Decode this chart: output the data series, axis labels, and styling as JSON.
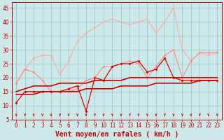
{
  "x": [
    0,
    1,
    2,
    3,
    4,
    5,
    6,
    7,
    8,
    9,
    10,
    11,
    12,
    13,
    14,
    15,
    16,
    17,
    18,
    19,
    20,
    21,
    22,
    23
  ],
  "line_upper_light": [
    18,
    23,
    27,
    28,
    28,
    21,
    26,
    33,
    36,
    38,
    40,
    41,
    40,
    39,
    40,
    41,
    36,
    40,
    45,
    30,
    26,
    29,
    28,
    29
  ],
  "line_mid_light": [
    18,
    23,
    22,
    19,
    15,
    15,
    15,
    16,
    19,
    20,
    24,
    24,
    25,
    26,
    25,
    20,
    24,
    28,
    30,
    20,
    26,
    29,
    29,
    29
  ],
  "line_red_jagged": [
    11,
    15,
    15,
    15,
    15,
    15,
    16,
    17,
    8,
    20,
    19,
    24,
    25,
    25,
    26,
    22,
    23,
    27,
    20,
    19,
    19,
    19,
    19,
    19
  ],
  "line_trend_upper": [
    15,
    16,
    17,
    17,
    17,
    18,
    18,
    18,
    18,
    19,
    19,
    19,
    19,
    20,
    20,
    20,
    20,
    20,
    20,
    20,
    20,
    20,
    20,
    20
  ],
  "line_trend_lower": [
    14,
    14,
    14,
    15,
    15,
    15,
    15,
    15,
    16,
    16,
    16,
    16,
    17,
    17,
    17,
    17,
    18,
    18,
    18,
    18,
    18,
    19,
    19,
    19
  ],
  "bg_color": "#cce8e8",
  "grid_color": "#99cccc",
  "col_upper_light": "#ffaaaa",
  "col_mid_light": "#ff8888",
  "col_red_jagged": "#dd0000",
  "col_trend": "#cc0000",
  "xlabel": "Vent moyen/en rafales ( km/h )",
  "ylim": [
    5,
    47
  ],
  "xlim": [
    -0.5,
    23.5
  ],
  "yticks": [
    5,
    10,
    15,
    20,
    25,
    30,
    35,
    40,
    45
  ],
  "xticks": [
    0,
    1,
    2,
    3,
    4,
    5,
    6,
    7,
    8,
    9,
    10,
    11,
    12,
    13,
    14,
    15,
    16,
    17,
    18,
    19,
    20,
    21,
    22,
    23
  ],
  "xlabel_fontsize": 7,
  "tick_fontsize": 5.5
}
